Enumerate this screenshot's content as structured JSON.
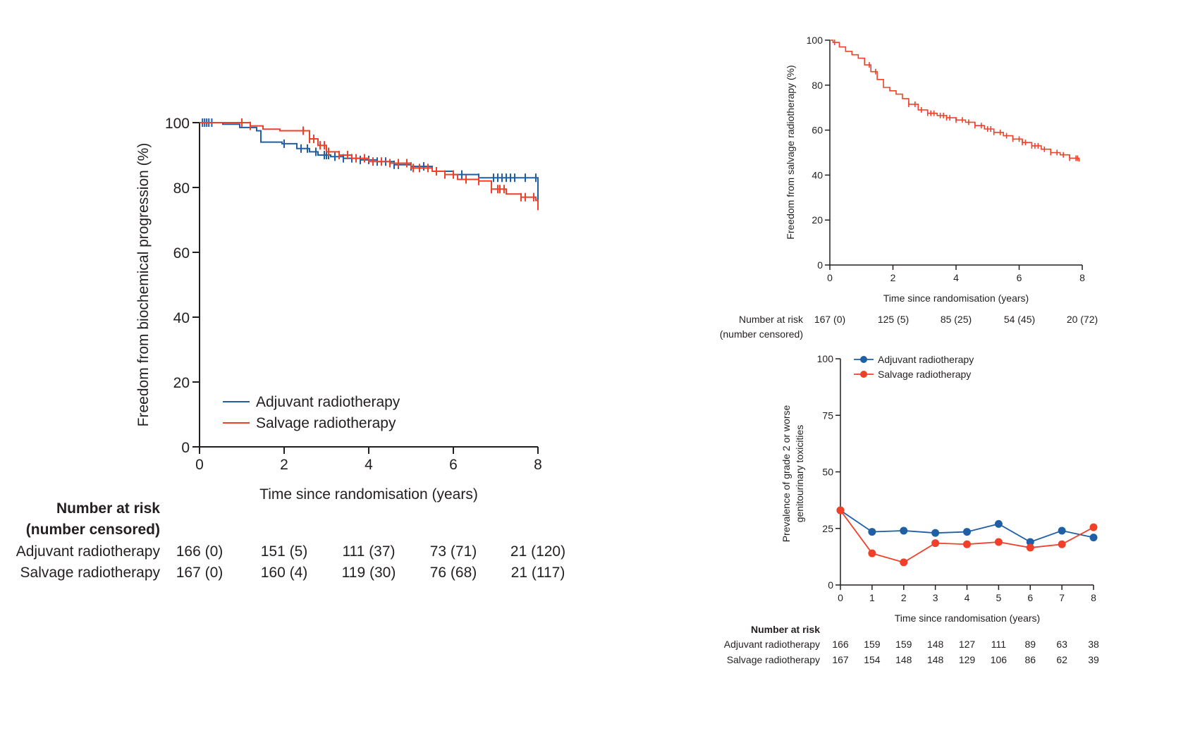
{
  "chart_data": [
    {
      "type": "line",
      "title": "",
      "xlabel": "Time since randomisation (years)",
      "ylabel": "Freedom from biochemical progression (%)",
      "xlim": [
        0,
        8
      ],
      "ylim": [
        0,
        100
      ],
      "xticks": [
        "0",
        "2",
        "4",
        "6",
        "8"
      ],
      "yticks": [
        "0",
        "20",
        "40",
        "60",
        "80",
        "100"
      ],
      "series": [
        {
          "name": "Adjuvant radiotherapy",
          "color": "#1f5fa6",
          "x": [
            0,
            0.55,
            0.95,
            1.35,
            1.45,
            1.95,
            2.3,
            2.6,
            2.8,
            3.1,
            3.4,
            3.8,
            4.2,
            4.6,
            5.0,
            5.5,
            6.0,
            6.6,
            7.0,
            8.0
          ],
          "y": [
            100,
            99.5,
            98.5,
            97.5,
            94,
            93.5,
            92,
            91,
            90,
            89.5,
            89,
            88.5,
            88,
            87,
            86.5,
            85,
            84,
            83,
            83,
            76
          ],
          "censor_x": [
            0.07,
            0.12,
            0.17,
            0.22,
            0.29,
            2.0,
            2.4,
            2.55,
            2.75,
            2.95,
            3.0,
            3.05,
            3.2,
            3.4,
            3.6,
            3.8,
            4.0,
            4.2,
            4.4,
            4.6,
            4.7,
            5.0,
            5.3,
            5.6,
            6.2,
            6.6,
            6.95,
            7.05,
            7.15,
            7.25,
            7.35,
            7.45,
            7.7,
            7.95
          ]
        },
        {
          "name": "Salvage radiotherapy",
          "color": "#f0402a",
          "x": [
            0,
            0.9,
            1.2,
            1.5,
            1.9,
            2.45,
            2.6,
            2.8,
            3.0,
            3.3,
            3.6,
            4.0,
            4.5,
            5.0,
            5.5,
            5.8,
            6.1,
            6.6,
            6.9,
            7.25,
            7.6,
            7.95,
            8.0
          ],
          "y": [
            100,
            100,
            99,
            98,
            97.5,
            97.5,
            95,
            93,
            91,
            90,
            89,
            88,
            87.5,
            86,
            85,
            84,
            82.5,
            82,
            79.5,
            78,
            77,
            76,
            73
          ],
          "censor_x": [
            1.0,
            1.2,
            2.45,
            2.6,
            2.7,
            2.85,
            2.95,
            3.05,
            3.3,
            3.5,
            3.7,
            3.9,
            4.1,
            4.3,
            4.5,
            4.7,
            4.9,
            5.05,
            5.2,
            5.4,
            5.6,
            5.8,
            6.0,
            6.3,
            6.6,
            6.9,
            7.05,
            7.1,
            7.2,
            7.6,
            7.7,
            7.9
          ]
        }
      ],
      "legend": [
        "Adjuvant radiotherapy",
        "Salvage radiotherapy"
      ],
      "legend_position": "bottom-left",
      "risk_table": {
        "header": [
          "Number at risk",
          "(number censored)"
        ],
        "rows": [
          {
            "label": "Adjuvant radiotherapy",
            "values": [
              "166 (0)",
              "151 (5)",
              "111 (37)",
              "73 (71)",
              "21 (120)"
            ]
          },
          {
            "label": "Salvage radiotherapy",
            "values": [
              "167 (0)",
              "160 (4)",
              "119 (30)",
              "76 (68)",
              "21 (117)"
            ]
          }
        ]
      }
    },
    {
      "type": "line",
      "title": "",
      "xlabel": "Time since randomisation (years)",
      "ylabel": "Freedom from salvage radiotherapy (%)",
      "xlim": [
        0,
        8
      ],
      "ylim": [
        0,
        100
      ],
      "xticks": [
        "0",
        "2",
        "4",
        "6",
        "8"
      ],
      "yticks": [
        "0",
        "20",
        "40",
        "60",
        "80",
        "100"
      ],
      "series": [
        {
          "name": "Salvage radiotherapy",
          "color": "#f0402a",
          "x": [
            0,
            0.1,
            0.3,
            0.5,
            0.7,
            0.9,
            1.1,
            1.3,
            1.5,
            1.7,
            1.9,
            2.1,
            2.3,
            2.5,
            2.8,
            3.1,
            3.4,
            3.7,
            4.0,
            4.3,
            4.6,
            4.9,
            5.2,
            5.5,
            5.8,
            6.1,
            6.4,
            6.7,
            7.0,
            7.3,
            7.6,
            7.9
          ],
          "y": [
            100,
            99,
            97,
            95,
            93.5,
            92,
            89,
            86,
            82.5,
            79,
            77.5,
            76,
            74,
            71.5,
            69,
            67.5,
            66.5,
            65.5,
            64.5,
            63.5,
            62,
            60.5,
            59,
            57.5,
            56,
            54.5,
            53,
            51.5,
            50,
            49,
            47.5,
            46
          ],
          "censor_x": [
            0.15,
            1.25,
            1.45,
            2.5,
            2.7,
            2.9,
            3.1,
            3.2,
            3.3,
            3.5,
            3.6,
            3.7,
            3.8,
            4.0,
            4.2,
            4.4,
            4.6,
            4.8,
            5.0,
            5.1,
            5.2,
            5.4,
            5.6,
            5.8,
            6.0,
            6.1,
            6.2,
            6.4,
            6.5,
            6.6,
            6.8,
            7.0,
            7.2,
            7.4,
            7.6,
            7.8,
            7.85
          ]
        }
      ],
      "risk_table": {
        "header": [
          "Number at risk",
          "(number censored)"
        ],
        "rows": [
          {
            "label": "",
            "values": [
              "167 (0)",
              "125 (5)",
              "85 (25)",
              "54 (45)",
              "20 (72)"
            ]
          }
        ]
      }
    },
    {
      "type": "line",
      "title": "",
      "xlabel": "Time since randomisation (years)",
      "ylabel": "Prevalence of grade 2 or worse genitourinary toxicities",
      "ylabel_lines": [
        "Prevalence of grade 2 or worse",
        "genitourinary toxicities"
      ],
      "xlim": [
        0,
        8
      ],
      "ylim": [
        0,
        100
      ],
      "x": [
        0,
        1,
        2,
        3,
        4,
        5,
        6,
        7,
        8
      ],
      "xticks": [
        "0",
        "1",
        "2",
        "3",
        "4",
        "5",
        "6",
        "7",
        "8"
      ],
      "yticks": [
        "0",
        "25",
        "50",
        "75",
        "100"
      ],
      "series": [
        {
          "name": "Adjuvant radiotherapy",
          "color": "#1f5fa6",
          "values": [
            33,
            23.5,
            24,
            23,
            23.5,
            27,
            19,
            24,
            21
          ]
        },
        {
          "name": "Salvage radiotherapy",
          "color": "#f0402a",
          "values": [
            33,
            14,
            10,
            18.5,
            18,
            19,
            16.5,
            18,
            25.5
          ]
        }
      ],
      "legend": [
        "Adjuvant radiotherapy",
        "Salvage radiotherapy"
      ],
      "legend_position": "top-left",
      "risk_table": {
        "header": [
          "Number at risk"
        ],
        "rows": [
          {
            "label": "Adjuvant radiotherapy",
            "values": [
              "166",
              "159",
              "159",
              "148",
              "127",
              "111",
              "89",
              "63",
              "38"
            ]
          },
          {
            "label": "Salvage radiotherapy",
            "values": [
              "167",
              "154",
              "148",
              "148",
              "129",
              "106",
              "86",
              "62",
              "39"
            ]
          }
        ]
      }
    }
  ]
}
